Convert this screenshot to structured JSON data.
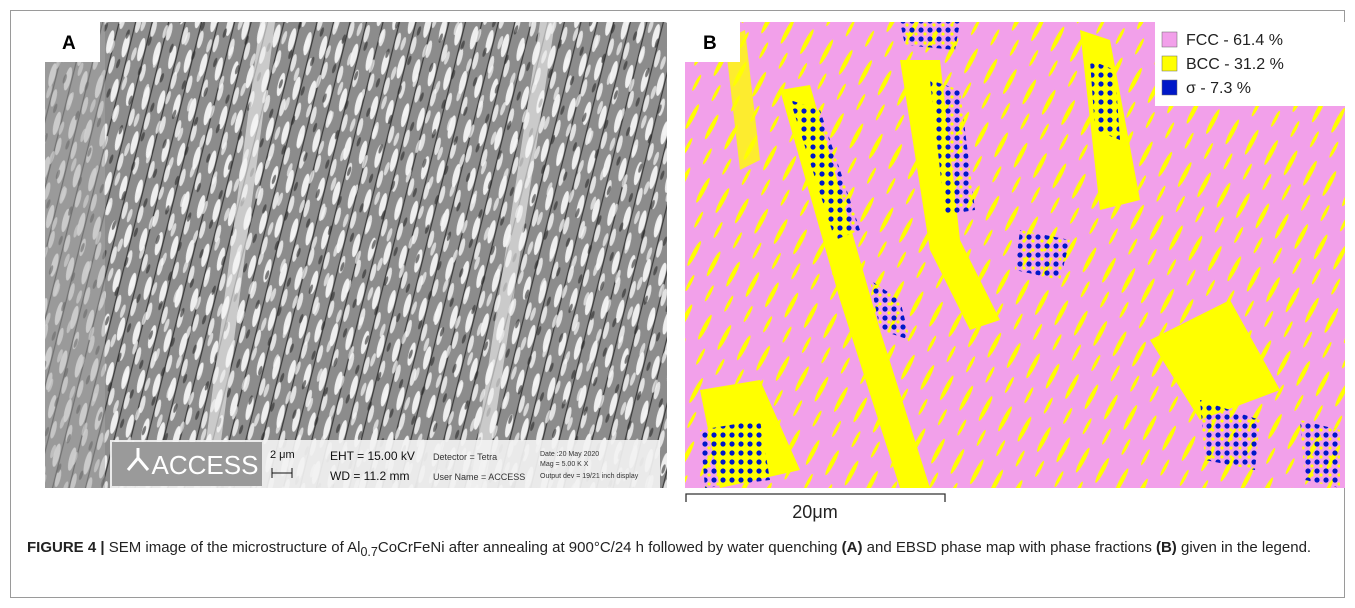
{
  "panels": [
    {
      "label": "A",
      "info_bar": {
        "logo": "ACCESS",
        "scale": "2 μm",
        "eht": "EHT = 15.00 kV",
        "wd": "WD = 11.2 mm",
        "detector": "Detector = Tetra",
        "user": "User Name = ACCESS",
        "date": "Date :20 May 2020",
        "mag": "Mag =  5.00 K X",
        "output": "Output dev = 19/21 inch display"
      }
    },
    {
      "label": "B",
      "legend": [
        {
          "label": "FCC - 61.4 %",
          "color": "#f2a0ea"
        },
        {
          "label": "BCC - 31.2 %",
          "color": "#ffff00"
        },
        {
          "label": "σ - 7.3 %",
          "color": "#0018c8"
        }
      ],
      "scale_bar": "20μm"
    }
  ],
  "caption": {
    "label": "FIGURE 4 |",
    "text_1": " SEM image of the microstructure of Al",
    "subscript": "0.7",
    "text_2": "CoCrFeNi after annealing at 900°C/24 h followed by water quenching ",
    "ref_a": "(A)",
    "text_3": " and EBSD phase map with phase fractions ",
    "ref_b": "(B)",
    "text_4": " given in the legend."
  }
}
